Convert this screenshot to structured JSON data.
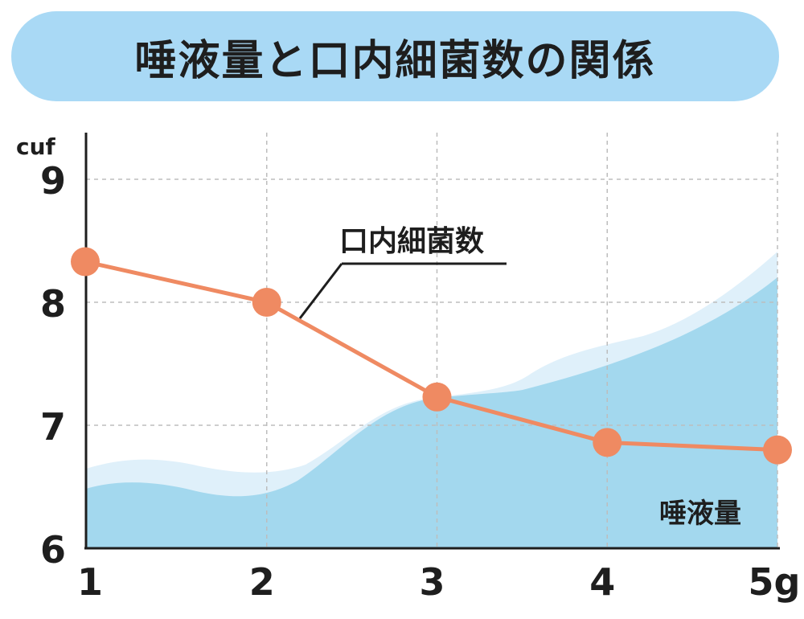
{
  "chart_data": {
    "type": "line",
    "title": "唾液量と口内細菌数の関係",
    "x": [
      1,
      2,
      3,
      4,
      5
    ],
    "x_tick_labels": [
      "1",
      "2",
      "3",
      "4",
      "5g"
    ],
    "y_tick_labels": [
      "6",
      "7",
      "8",
      "9"
    ],
    "y_unit": "cuf",
    "ylim": [
      6,
      9.6
    ],
    "xlim": [
      1,
      5
    ],
    "grid": true,
    "series": [
      {
        "name": "口内細菌数",
        "values": [
          8.33,
          8.0,
          7.23,
          6.86,
          6.8
        ],
        "color": "#ef8a62",
        "style": "line-with-markers"
      }
    ],
    "area_series": {
      "name": "唾液量",
      "color": "#a3d8ee",
      "highlight_color": "#dff0fa",
      "note": "qualitative increasing area (no numeric scale)"
    },
    "annotations": [
      {
        "text": "口内細菌数",
        "target": "series-line"
      },
      {
        "text": "唾液量",
        "target": "area"
      }
    ],
    "colors": {
      "banner": "#a9d9f5",
      "axis": "#1e1e1e",
      "grid": "#bdbdbd"
    }
  }
}
